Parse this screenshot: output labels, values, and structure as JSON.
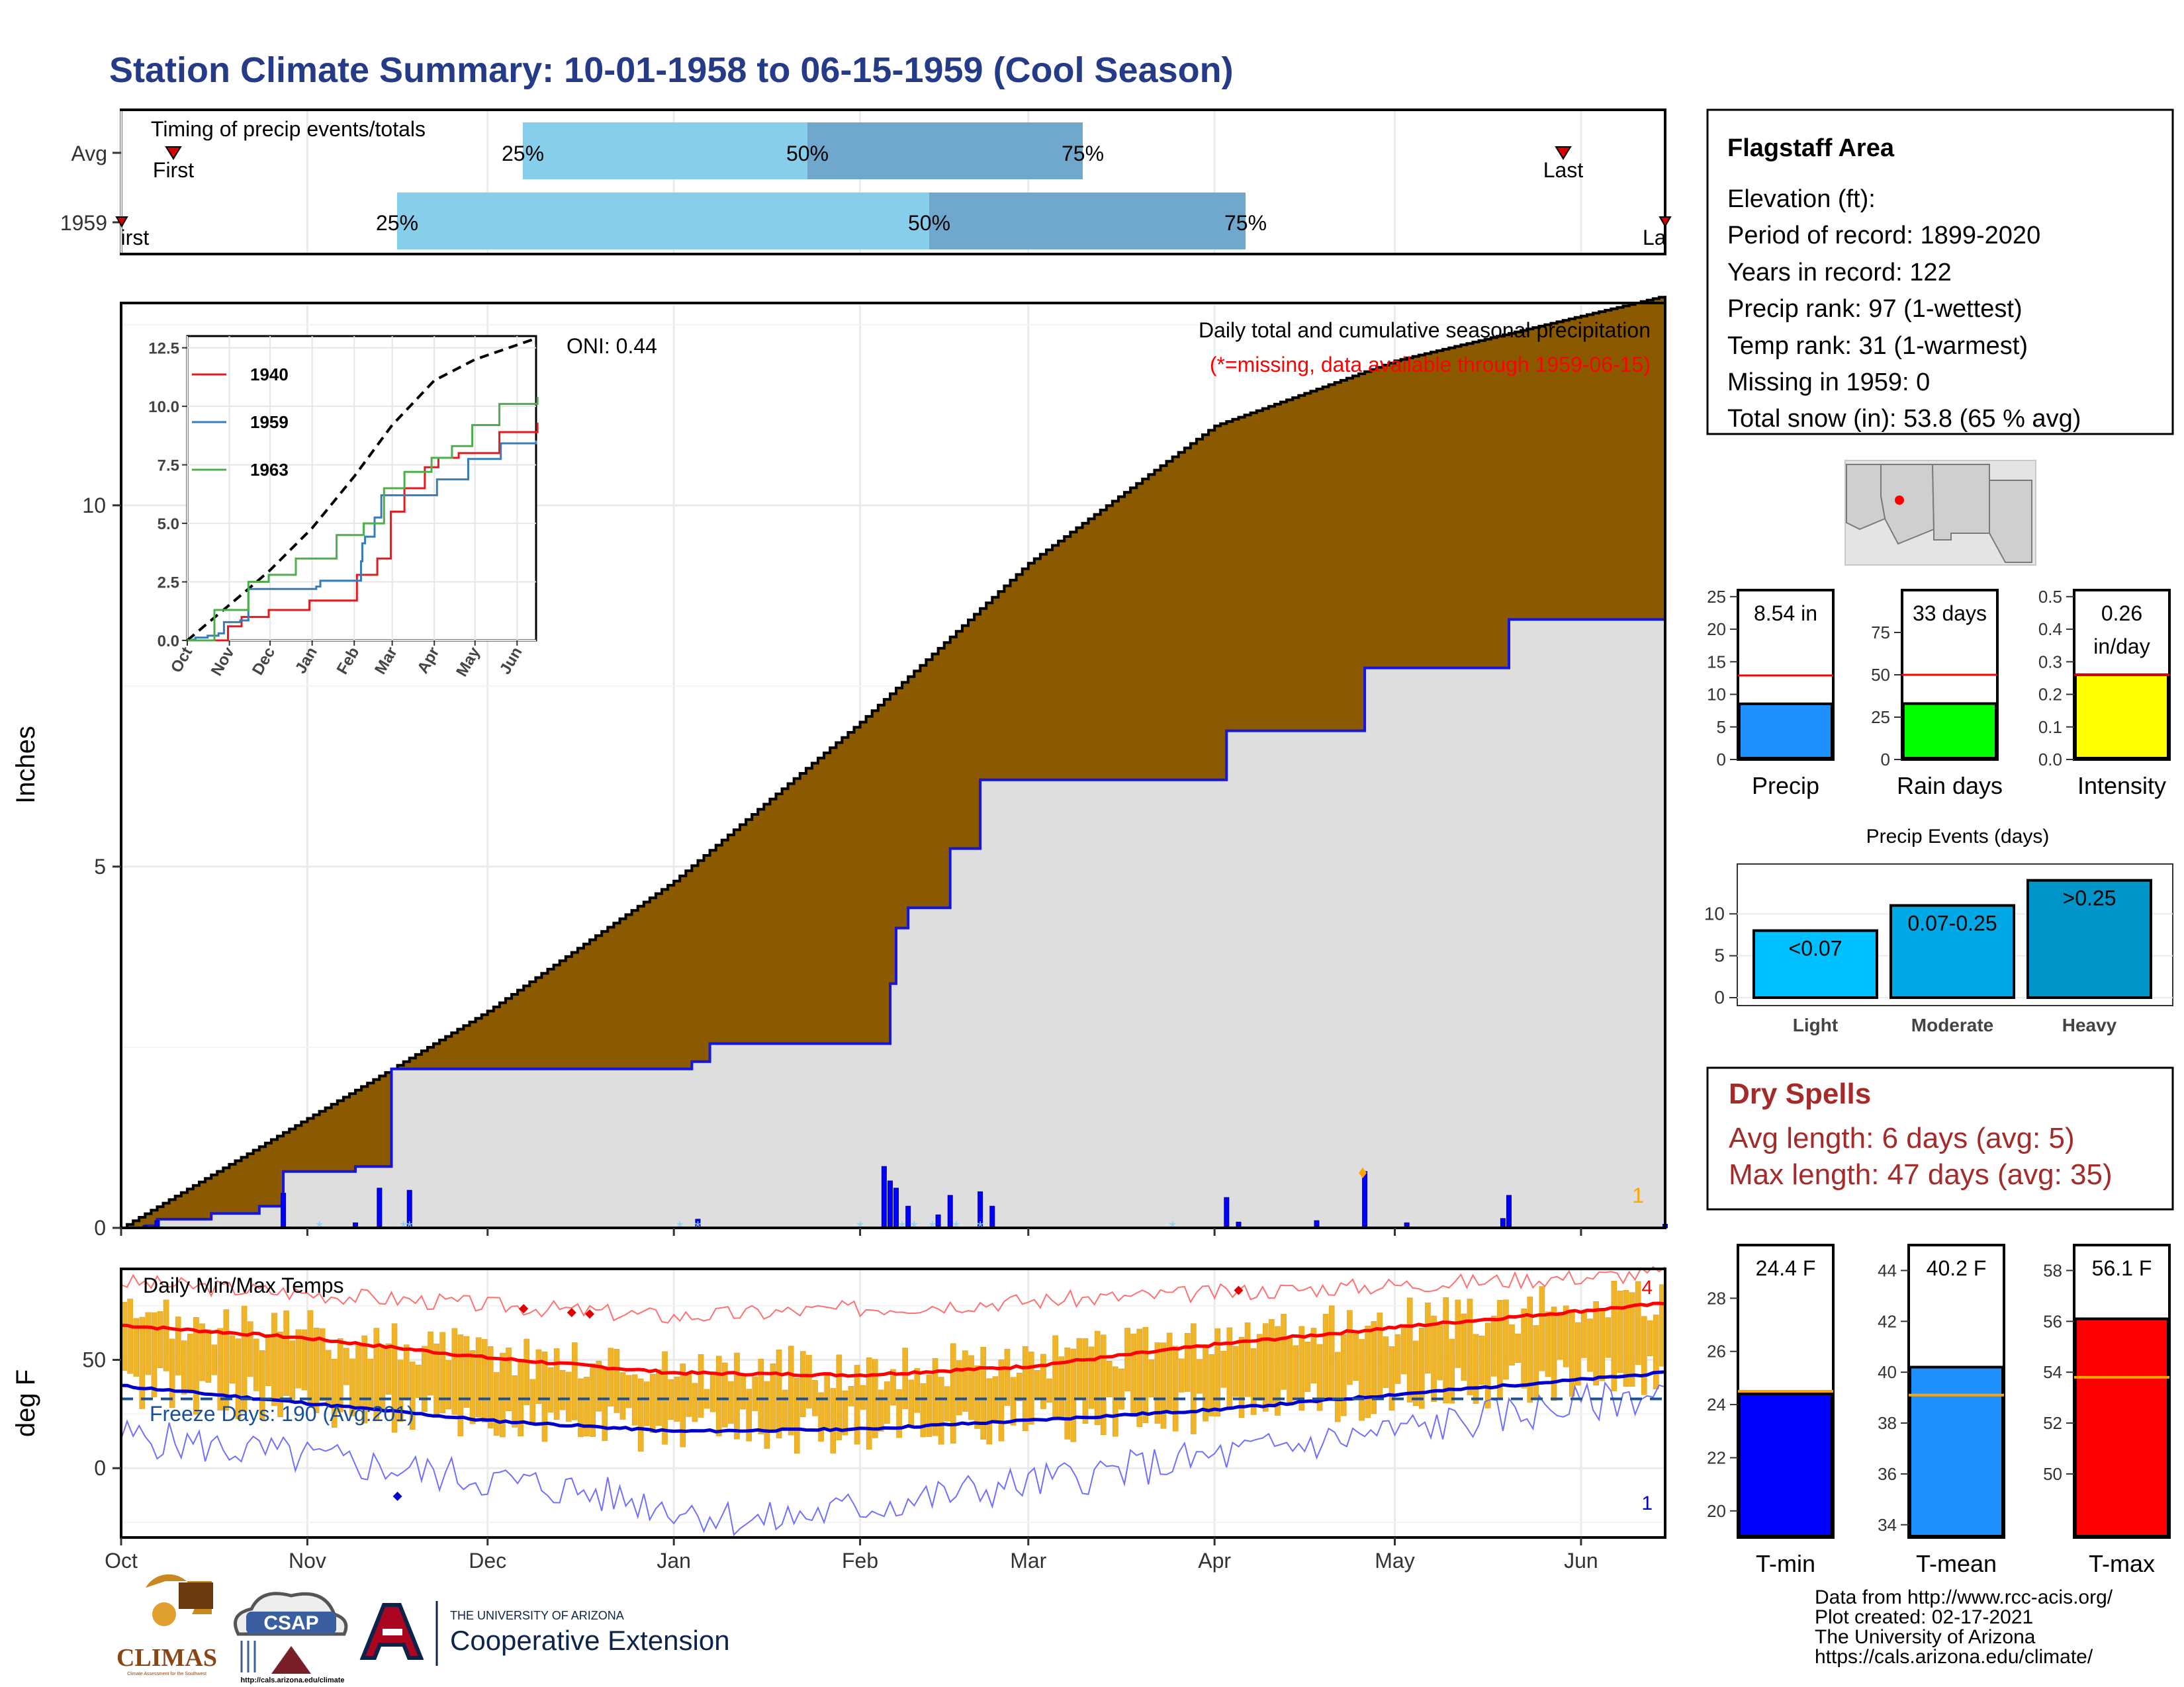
{
  "title": "Station Climate Summary: 10-01-1958 to 06-15-1959 (Cool Season)",
  "timing": {
    "label": "Timing of precip events/totals",
    "rows": [
      "Avg",
      "1959"
    ],
    "avg": {
      "first": "First",
      "last": "Last",
      "q25": "25%",
      "q50": "50%",
      "q75": "75%"
    },
    "yr": {
      "first": "First",
      "last": "Last",
      "q25": "25%",
      "q50": "50%",
      "q75": "75%"
    }
  },
  "precip_panel": {
    "note": "Daily total and cumulative seasonal precipitation",
    "missing_note": "(*=missing, data available through 1959-06-15)",
    "oni": "ONI: 0.44",
    "ylabel": "Inches",
    "yticks": [
      "0",
      "5",
      "10"
    ],
    "missing_count": "1"
  },
  "temp_panel": {
    "label": "Daily Min/Max Temps",
    "ylabel": "deg F",
    "yticks": [
      "0",
      "50"
    ],
    "freeze": "Freeze Days: 190 (Avg:201)",
    "max_count": "4",
    "min_count": "1"
  },
  "x_axis": {
    "months": [
      "Oct",
      "Nov",
      "Dec",
      "Jan",
      "Feb",
      "Mar",
      "Apr",
      "May",
      "Jun"
    ]
  },
  "inset": {
    "yticks": [
      "0.0",
      "2.5",
      "5.0",
      "7.5",
      "10.0",
      "12.5"
    ],
    "months": [
      "Oct",
      "Nov",
      "Dec",
      "Jan",
      "Feb",
      "Mar",
      "Apr",
      "May",
      "Jun"
    ],
    "legend": [
      "1940",
      "1959",
      "1963"
    ],
    "colors": [
      "#e41a1c",
      "#377eb8",
      "#4daf4a"
    ]
  },
  "info": {
    "name": "Flagstaff Area",
    "lines": [
      "Elevation (ft):",
      "Period of record: 1899-2020",
      "Years in record: 122",
      "Precip rank: 97 (1-wettest)",
      "Temp rank: 31 (1-warmest)",
      "Missing in 1959: 0",
      "Total snow (in): 53.8 (65 % avg)"
    ]
  },
  "gauges_precip": [
    {
      "label": "Precip",
      "value_text": "8.54 in",
      "value": 8.54,
      "avg": 12.9,
      "max": 26,
      "ticks": [
        "0",
        "5",
        "10",
        "15",
        "20",
        "25"
      ],
      "color": "#1e90ff"
    },
    {
      "label": "Rain days",
      "value_text": "33 days",
      "value": 33,
      "avg": 50,
      "max": 100,
      "ticks": [
        "0",
        "25",
        "50",
        "75"
      ],
      "color": "#00ff00"
    },
    {
      "label": "Intensity",
      "value_text": "0.26 in/day",
      "value": 0.26,
      "avg": 0.26,
      "max": 0.52,
      "ticks": [
        "0.0",
        "0.1",
        "0.2",
        "0.3",
        "0.4",
        "0.5"
      ],
      "color": "#ffff00"
    }
  ],
  "events": {
    "title": "Precip Events (days)",
    "categories": [
      "Light",
      "Moderate",
      "Heavy"
    ],
    "labels": [
      "<0.07",
      "0.07-0.25",
      ">0.25"
    ],
    "values": [
      8,
      11,
      14
    ],
    "yticks": [
      "0",
      "5",
      "10"
    ],
    "colors": [
      "#00bfff",
      "#00a9e6",
      "#0095c8"
    ]
  },
  "dry_spells": {
    "title": "Dry Spells",
    "avg_length": "Avg length: 6 days (avg: 5)",
    "max_length": "Max length: 47 days (avg: 35)"
  },
  "gauges_temp": [
    {
      "label": "T-min",
      "value_text": "24.4 F",
      "value": 24.4,
      "avg": 24.5,
      "min": 19,
      "max": 30,
      "ticks": [
        "20",
        "22",
        "24",
        "26",
        "28"
      ],
      "color": "#0000ff"
    },
    {
      "label": "T-mean",
      "value_text": "40.2 F",
      "value": 40.2,
      "avg": 39.1,
      "min": 33.5,
      "max": 45,
      "ticks": [
        "34",
        "36",
        "38",
        "40",
        "42",
        "44"
      ],
      "color": "#1e90ff"
    },
    {
      "label": "T-max",
      "value_text": "56.1 F",
      "value": 56.1,
      "avg": 53.8,
      "min": 47.5,
      "max": 59,
      "ticks": [
        "50",
        "52",
        "54",
        "56",
        "58"
      ],
      "color": "#ff0000"
    }
  ],
  "footer": {
    "lines": [
      "Data from http://www.rcc-acis.org/",
      "Plot created: 02-17-2021",
      "The University of Arizona",
      "https://cals.arizona.edu/climate/"
    ]
  },
  "logos": {
    "climas": "CLIMAS",
    "climas_sub": "Climate Assessment for the Southwest",
    "csap": "CSAP",
    "csap_url": "http://cals.arizona.edu/climate",
    "ua_small": "THE UNIVERSITY OF ARIZONA",
    "ua_large": "Cooperative Extension"
  },
  "chart_data": [
    {
      "type": "area",
      "title": "Daily total and cumulative seasonal precipitation",
      "ylabel": "Inches",
      "ylim": [
        0,
        12.8
      ],
      "x_unit": "month",
      "categories": [
        "Oct",
        "Nov",
        "Dec",
        "Jan",
        "Feb",
        "Mar",
        "Apr",
        "May",
        "Jun"
      ],
      "series": [
        {
          "name": "cumulative average (brown top)",
          "x": [
            "1958-10-01",
            "1958-11-15",
            "1958-12-01",
            "1959-01-01",
            "1959-02-01",
            "1959-03-01",
            "1959-04-01",
            "1959-05-01",
            "1959-06-15"
          ],
          "values": [
            0.0,
            2.2,
            3.0,
            4.8,
            7.0,
            9.2,
            11.1,
            12.0,
            12.9
          ]
        },
        {
          "name": "1959",
          "x": [
            "1958-10-01",
            "1958-10-05",
            "1958-10-07",
            "1958-10-16",
            "1958-10-24",
            "1958-10-28",
            "1958-11-09",
            "1958-11-15",
            "1959-01-04",
            "1959-01-07",
            "1959-02-05",
            "1959-02-06",
            "1959-02-07",
            "1959-02-09",
            "1959-02-16",
            "1959-02-21",
            "1959-04-03",
            "1959-04-04",
            "1959-04-26",
            "1959-05-20",
            "1959-06-15"
          ],
          "values": [
            0.0,
            0.03,
            0.12,
            0.2,
            0.3,
            0.78,
            0.85,
            2.2,
            2.3,
            2.55,
            2.55,
            3.38,
            4.15,
            4.43,
            5.25,
            6.2,
            6.88,
            6.88,
            7.75,
            8.42,
            8.54
          ]
        }
      ],
      "daily_precip": [
        {
          "date": "1958-10-05",
          "value": 0.03
        },
        {
          "date": "1958-10-07",
          "value": 0.1
        },
        {
          "date": "1958-10-28",
          "value": 0.48
        },
        {
          "date": "1958-11-09",
          "value": 0.07
        },
        {
          "date": "1958-11-13",
          "value": 0.55
        },
        {
          "date": "1958-11-18",
          "value": 0.52
        },
        {
          "date": "1959-01-05",
          "value": 0.12
        },
        {
          "date": "1959-02-05",
          "value": 0.85
        },
        {
          "date": "1959-02-06",
          "value": 0.65
        },
        {
          "date": "1959-02-07",
          "value": 0.55
        },
        {
          "date": "1959-02-09",
          "value": 0.3
        },
        {
          "date": "1959-02-14",
          "value": 0.18
        },
        {
          "date": "1959-02-16",
          "value": 0.45
        },
        {
          "date": "1959-02-21",
          "value": 0.5
        },
        {
          "date": "1959-02-23",
          "value": 0.3
        },
        {
          "date": "1959-04-03",
          "value": 0.42
        },
        {
          "date": "1959-04-05",
          "value": 0.08
        },
        {
          "date": "1959-04-18",
          "value": 0.1
        },
        {
          "date": "1959-04-26",
          "value": 0.78
        },
        {
          "date": "1959-05-03",
          "value": 0.07
        },
        {
          "date": "1959-05-19",
          "value": 0.13
        },
        {
          "date": "1959-05-20",
          "value": 0.45
        },
        {
          "date": "1959-06-15",
          "value": 0.05
        }
      ]
    },
    {
      "type": "line",
      "title": "Daily Min/Max Temps",
      "ylabel": "deg F",
      "ylim": [
        -32,
        92
      ],
      "series": [
        {
          "name": "avg max",
          "x": [
            "1958-10-01",
            "1958-11-01",
            "1958-12-01",
            "1959-01-01",
            "1959-02-01",
            "1959-03-01",
            "1959-04-01",
            "1959-05-01",
            "1959-06-15"
          ],
          "values": [
            66,
            60,
            51,
            44,
            43,
            47,
            57,
            65,
            76
          ]
        },
        {
          "name": "avg min",
          "x": [
            "1958-10-01",
            "1958-11-01",
            "1958-12-01",
            "1959-01-01",
            "1959-02-01",
            "1959-03-01",
            "1959-04-01",
            "1959-05-01",
            "1959-06-15"
          ],
          "values": [
            38,
            30,
            22,
            17,
            18,
            22,
            27,
            34,
            44
          ]
        },
        {
          "name": "record max",
          "x": [
            "1958-10-01",
            "1959-01-01",
            "1959-06-15"
          ],
          "values": [
            86,
            70,
            90
          ]
        },
        {
          "name": "record min",
          "x": [
            "1958-10-01",
            "1958-12-15",
            "1959-01-15",
            "1959-06-15"
          ],
          "values": [
            15,
            -10,
            -25,
            35
          ]
        },
        {
          "name": "freeze line",
          "x": [
            "1958-10-01",
            "1959-06-15"
          ],
          "values": [
            32,
            32
          ]
        }
      ],
      "record_highs": [
        "1958-12-07",
        "1958-12-15",
        "1958-12-18",
        "1959-04-05"
      ],
      "record_lows": [
        "1958-11-16"
      ]
    }
  ]
}
